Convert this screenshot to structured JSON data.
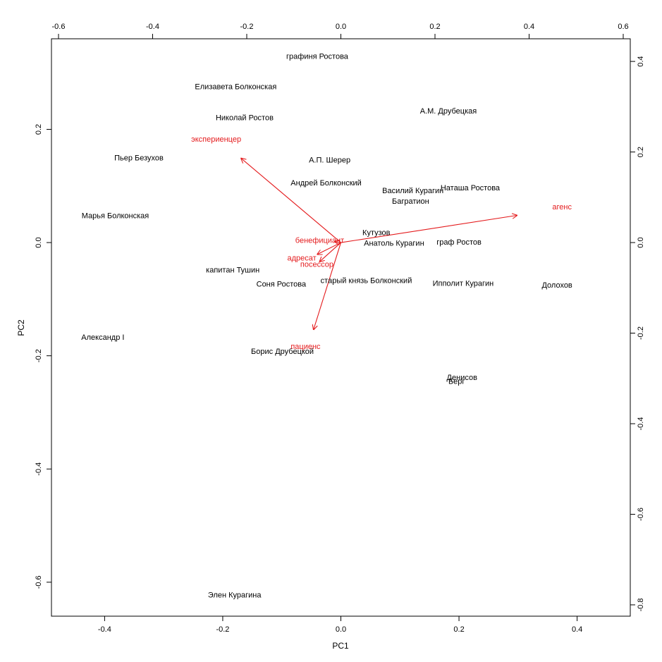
{
  "chart_data": {
    "type": "biplot",
    "xlabel": "PC1",
    "ylabel": "PC2",
    "title": "",
    "grid": false,
    "colors": {
      "observations": "#000000",
      "variables": "#e41a1c",
      "axes": "#000000"
    },
    "bottom_axis": {
      "range": [
        -0.49,
        0.49
      ],
      "ticks": [
        -0.4,
        -0.2,
        0.0,
        0.2,
        0.4
      ]
    },
    "left_axis": {
      "range": [
        -0.66,
        0.36
      ],
      "ticks": [
        -0.6,
        -0.4,
        -0.2,
        0.0,
        0.2
      ]
    },
    "top_axis": {
      "range": [
        -0.615,
        0.615
      ],
      "ticks": [
        -0.6,
        -0.4,
        -0.2,
        0.0,
        0.2,
        0.4,
        0.6
      ]
    },
    "right_axis": {
      "range": [
        -0.825,
        0.45
      ],
      "ticks": [
        -0.8,
        -0.6,
        -0.4,
        -0.2,
        0.0,
        0.2,
        0.4
      ]
    },
    "observations": [
      {
        "label": "графиня Ростова",
        "x": -0.04,
        "y": 0.328
      },
      {
        "label": "Елизавета Болконская",
        "x": -0.178,
        "y": 0.275
      },
      {
        "label": "Николай Ростов",
        "x": -0.163,
        "y": 0.22
      },
      {
        "label": "А.М. Друбецкая",
        "x": 0.182,
        "y": 0.232
      },
      {
        "label": "Пьер Безухов",
        "x": -0.342,
        "y": 0.149
      },
      {
        "label": "А.П. Шерер",
        "x": -0.019,
        "y": 0.145
      },
      {
        "label": "Андрей Болконский",
        "x": -0.025,
        "y": 0.105
      },
      {
        "label": "Василий Курагин",
        "x": 0.122,
        "y": 0.091
      },
      {
        "label": "Наташа Ростова",
        "x": 0.219,
        "y": 0.096
      },
      {
        "label": "Багратион",
        "x": 0.118,
        "y": 0.072
      },
      {
        "label": "Марья Болконская",
        "x": -0.382,
        "y": 0.047
      },
      {
        "label": "Кутузов",
        "x": 0.06,
        "y": 0.017
      },
      {
        "label": "Анатоль Курагин",
        "x": 0.09,
        "y": -0.002
      },
      {
        "label": "граф Ростов",
        "x": 0.2,
        "y": 0.0
      },
      {
        "label": "капитан Тушин",
        "x": -0.183,
        "y": -0.049
      },
      {
        "label": "старый князь Болконский",
        "x": 0.043,
        "y": -0.068
      },
      {
        "label": "Соня Ростова",
        "x": -0.101,
        "y": -0.074
      },
      {
        "label": "Ипполит Курагин",
        "x": 0.207,
        "y": -0.073
      },
      {
        "label": "Долохов",
        "x": 0.366,
        "y": -0.076
      },
      {
        "label": "Александр I",
        "x": -0.403,
        "y": -0.168
      },
      {
        "label": "Борис Друбецкой",
        "x": -0.099,
        "y": -0.193
      },
      {
        "label": "Денисов",
        "x": 0.205,
        "y": -0.239
      },
      {
        "label": "Берг",
        "x": 0.196,
        "y": -0.246
      },
      {
        "label": "Элен Курагина",
        "x": -0.18,
        "y": -0.623
      }
    ],
    "variables": [
      {
        "label": "агенс",
        "x": 0.374,
        "y": 0.06,
        "label_x": 0.47,
        "label_y": 0.078
      },
      {
        "label": "экспериенцер",
        "x": -0.212,
        "y": 0.186,
        "label_x": -0.265,
        "label_y": 0.227
      },
      {
        "label": "пациенс",
        "x": -0.058,
        "y": -0.192,
        "label_x": -0.075,
        "label_y": -0.23
      },
      {
        "label": "бенефициант",
        "x": -0.013,
        "y": 0.002,
        "label_x": -0.045,
        "label_y": 0.004
      },
      {
        "label": "адресат",
        "x": -0.05,
        "y": -0.026,
        "label_x": -0.083,
        "label_y": -0.035
      },
      {
        "label": "посессор",
        "x": -0.045,
        "y": -0.042,
        "label_x": -0.051,
        "label_y": -0.049
      }
    ]
  }
}
